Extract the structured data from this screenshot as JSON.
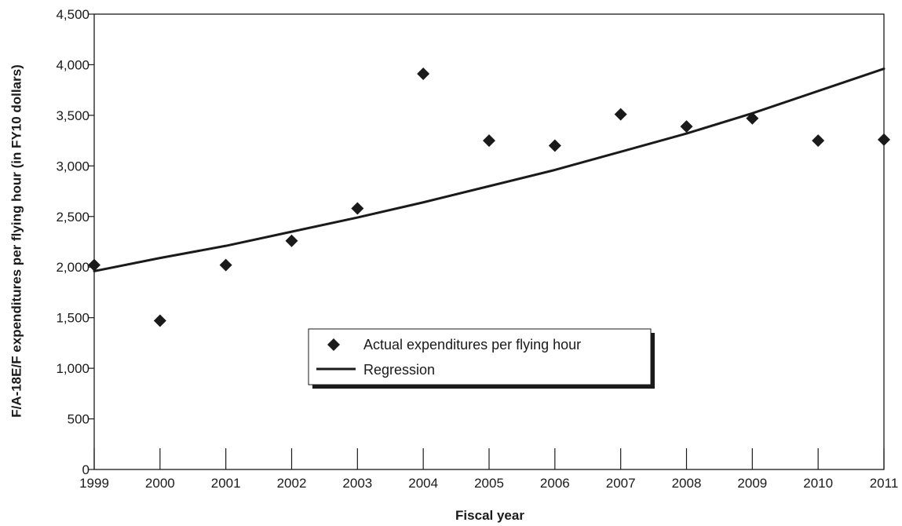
{
  "chart_data": {
    "type": "scatter",
    "title": "",
    "xlabel": "Fiscal year",
    "ylabel": "F/A-18E/F expenditures per flying hour (in FY10 dollars)",
    "xlim": [
      1999,
      2011
    ],
    "ylim": [
      0,
      4500
    ],
    "x_ticks": [
      "1999",
      "2000",
      "2001",
      "2002",
      "2003",
      "2004",
      "2005",
      "2006",
      "2007",
      "2008",
      "2009",
      "2010",
      "2011"
    ],
    "y_ticks": [
      "0",
      "500",
      "1,000",
      "1,500",
      "2,000",
      "2,500",
      "3,000",
      "3,500",
      "4,000",
      "4,500"
    ],
    "grid": false,
    "legend_position": "lower-center",
    "series": [
      {
        "name": "Actual expenditures per flying hour",
        "type": "scatter",
        "marker": "diamond",
        "color": "#1a1a1a",
        "x": [
          1999,
          2000,
          2001,
          2002,
          2003,
          2004,
          2005,
          2006,
          2007,
          2008,
          2009,
          2010,
          2011
        ],
        "y": [
          2020,
          1470,
          2020,
          2260,
          2580,
          3910,
          3250,
          3200,
          3510,
          3390,
          3470,
          3250,
          3260
        ]
      },
      {
        "name": "Regression",
        "type": "line",
        "color": "#1a1a1a",
        "x": [
          1999,
          2000,
          2001,
          2002,
          2003,
          2004,
          2005,
          2006,
          2007,
          2008,
          2009,
          2010,
          2011
        ],
        "y": [
          1960,
          2090,
          2210,
          2350,
          2490,
          2640,
          2800,
          2960,
          3140,
          3320,
          3520,
          3740,
          3960
        ]
      }
    ]
  }
}
